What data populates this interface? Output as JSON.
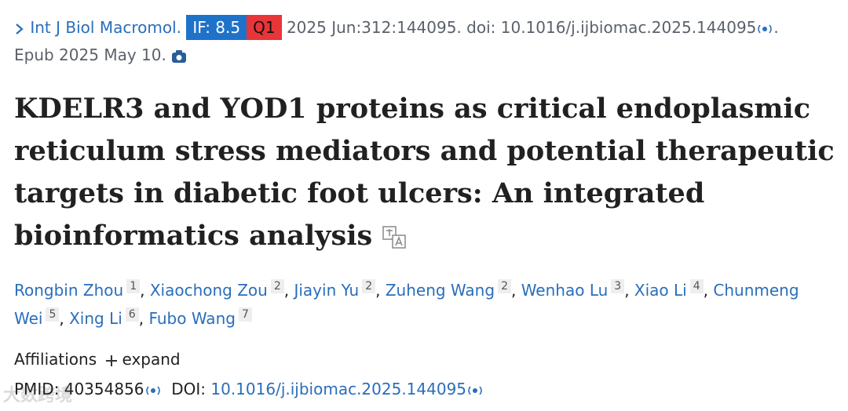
{
  "journal": {
    "name": "Int J Biol Macromol.",
    "impact_factor": "IF: 8.5",
    "quartile": "Q1",
    "citation": "2025 Jun:312:144095. doi: 10.1016/j.ijbiomac.2025.144095",
    "end": ".",
    "epub": "Epub 2025 May 10."
  },
  "title": "KDELR3 and YOD1 proteins as critical endoplasmic reticulum stress mediators and potential therapeutic targets in diabetic foot ulcers: An integrated bioinformatics analysis",
  "authors": [
    {
      "name": "Rongbin Zhou",
      "aff": "1",
      "sep": ","
    },
    {
      "name": "Xiaochong Zou",
      "aff": "2",
      "sep": ","
    },
    {
      "name": "Jiayin Yu",
      "aff": "2",
      "sep": ","
    },
    {
      "name": "Zuheng Wang",
      "aff": "2",
      "sep": ","
    },
    {
      "name": "Wenhao Lu",
      "aff": "3",
      "sep": ","
    },
    {
      "name": "Xiao Li",
      "aff": "4",
      "sep": ","
    },
    {
      "name": "Chunmeng Wei",
      "aff": "5",
      "sep": ","
    },
    {
      "name": "Xing Li",
      "aff": "6",
      "sep": ","
    },
    {
      "name": "Fubo Wang",
      "aff": "7",
      "sep": ""
    }
  ],
  "affiliations": {
    "label": "Affiliations",
    "action": "expand"
  },
  "ids": {
    "pmid_label": "PMID:",
    "pmid": "40354856",
    "doi_label": "DOI:",
    "doi": "10.1016/j.ijbiomac.2025.144095"
  },
  "watermark": "大数跨境"
}
